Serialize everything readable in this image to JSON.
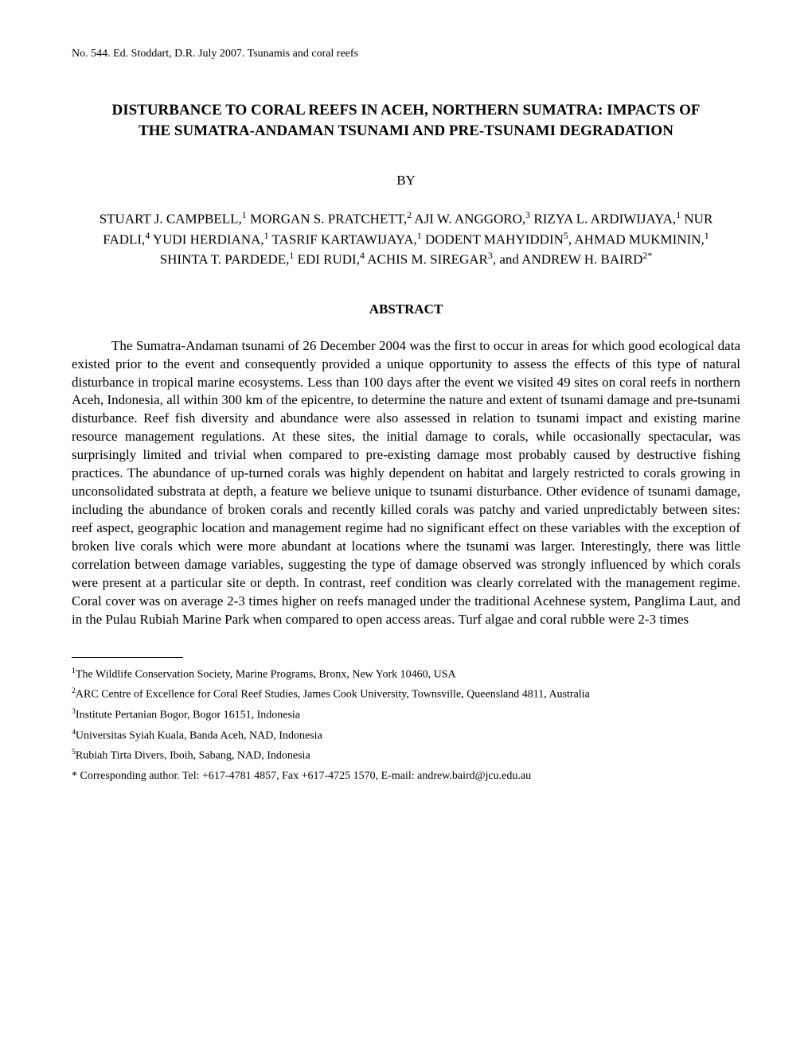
{
  "header": "No. 544. Ed. Stoddart, D.R. July 2007. Tsunamis and coral reefs",
  "title": "DISTURBANCE TO CORAL REEFS IN ACEH, NORTHERN SUMATRA: IMPACTS OF THE SUMATRA-ANDAMAN TSUNAMI AND PRE-TSUNAMI DEGRADATION",
  "by": "BY",
  "authors_html": "STUART J. CAMPBELL,<sup>1</sup> MORGAN S. PRATCHETT,<sup>2</sup> AJI W. ANGGORO,<sup>3</sup> RIZYA L. ARDIWIJAYA,<sup>1</sup> NUR FADLI,<sup>4</sup> YUDI HERDIANA,<sup>1</sup> TASRIF KARTAWIJAYA,<sup>1</sup> DODENT MAHYIDDIN<sup>5</sup>, AHMAD MUKMININ,<sup>1</sup> SHINTA T. PARDEDE,<sup>1</sup> EDI RUDI,<sup>4</sup> ACHIS M. SIREGAR<sup>3</sup>, and ANDREW H. BAIRD<sup>2*</sup>",
  "abstract_heading": "ABSTRACT",
  "abstract_body": "The Sumatra-Andaman tsunami of 26 December 2004 was the first to occur in areas for which good ecological data existed prior to the event and consequently provided a unique opportunity to assess the effects of this type of natural disturbance in tropical marine ecosystems. Less than 100 days after the event we visited 49 sites on coral reefs in northern Aceh, Indonesia, all within 300 km of the epicentre, to determine the nature and extent of tsunami damage and pre-tsunami disturbance. Reef fish diversity and abundance were also assessed in relation to tsunami impact and existing marine resource management regulations. At these sites, the initial damage to corals, while occasionally spectacular, was surprisingly limited and trivial when compared to pre-existing damage most probably caused by destructive fishing practices. The abundance of up-turned corals was highly dependent on habitat and largely restricted to corals growing in unconsolidated substrata at depth, a feature we believe unique to tsunami disturbance. Other evidence of tsunami damage, including the abundance of broken corals and recently killed corals was patchy and varied unpredictably between sites: reef aspect, geographic location and management regime had no significant effect on these variables with the exception of broken live corals which were more abundant at locations where the tsunami was larger. Interestingly, there was little correlation between damage variables, suggesting the type of damage observed was strongly influenced by which corals were present at a particular site or depth.  In contrast, reef condition was clearly correlated with the management regime. Coral cover was on average 2-3 times higher on reefs managed under the traditional Acehnese system, Panglima Laut, and in the Pulau Rubiah Marine Park when compared to open access areas. Turf algae and coral rubble were 2-3 times",
  "footnotes": [
    "<sup>1</sup>The Wildlife Conservation Society, Marine Programs, Bronx, New York 10460, USA",
    "<sup>2</sup>ARC Centre of Excellence for Coral Reef Studies, James Cook University, Townsville, Queensland 4811, Australia",
    "<sup>3</sup>Institute Pertanian Bogor, Bogor 16151, Indonesia",
    "<sup>4</sup>Universitas Syiah Kuala, Banda Aceh, NAD, Indonesia",
    "<sup>5</sup>Rubiah Tirta Divers, Iboih, Sabang, NAD, Indonesia",
    "* Corresponding author. Tel: +617-4781 4857, Fax +617-4725 1570, E-mail: andrew.baird@jcu.edu.au"
  ]
}
